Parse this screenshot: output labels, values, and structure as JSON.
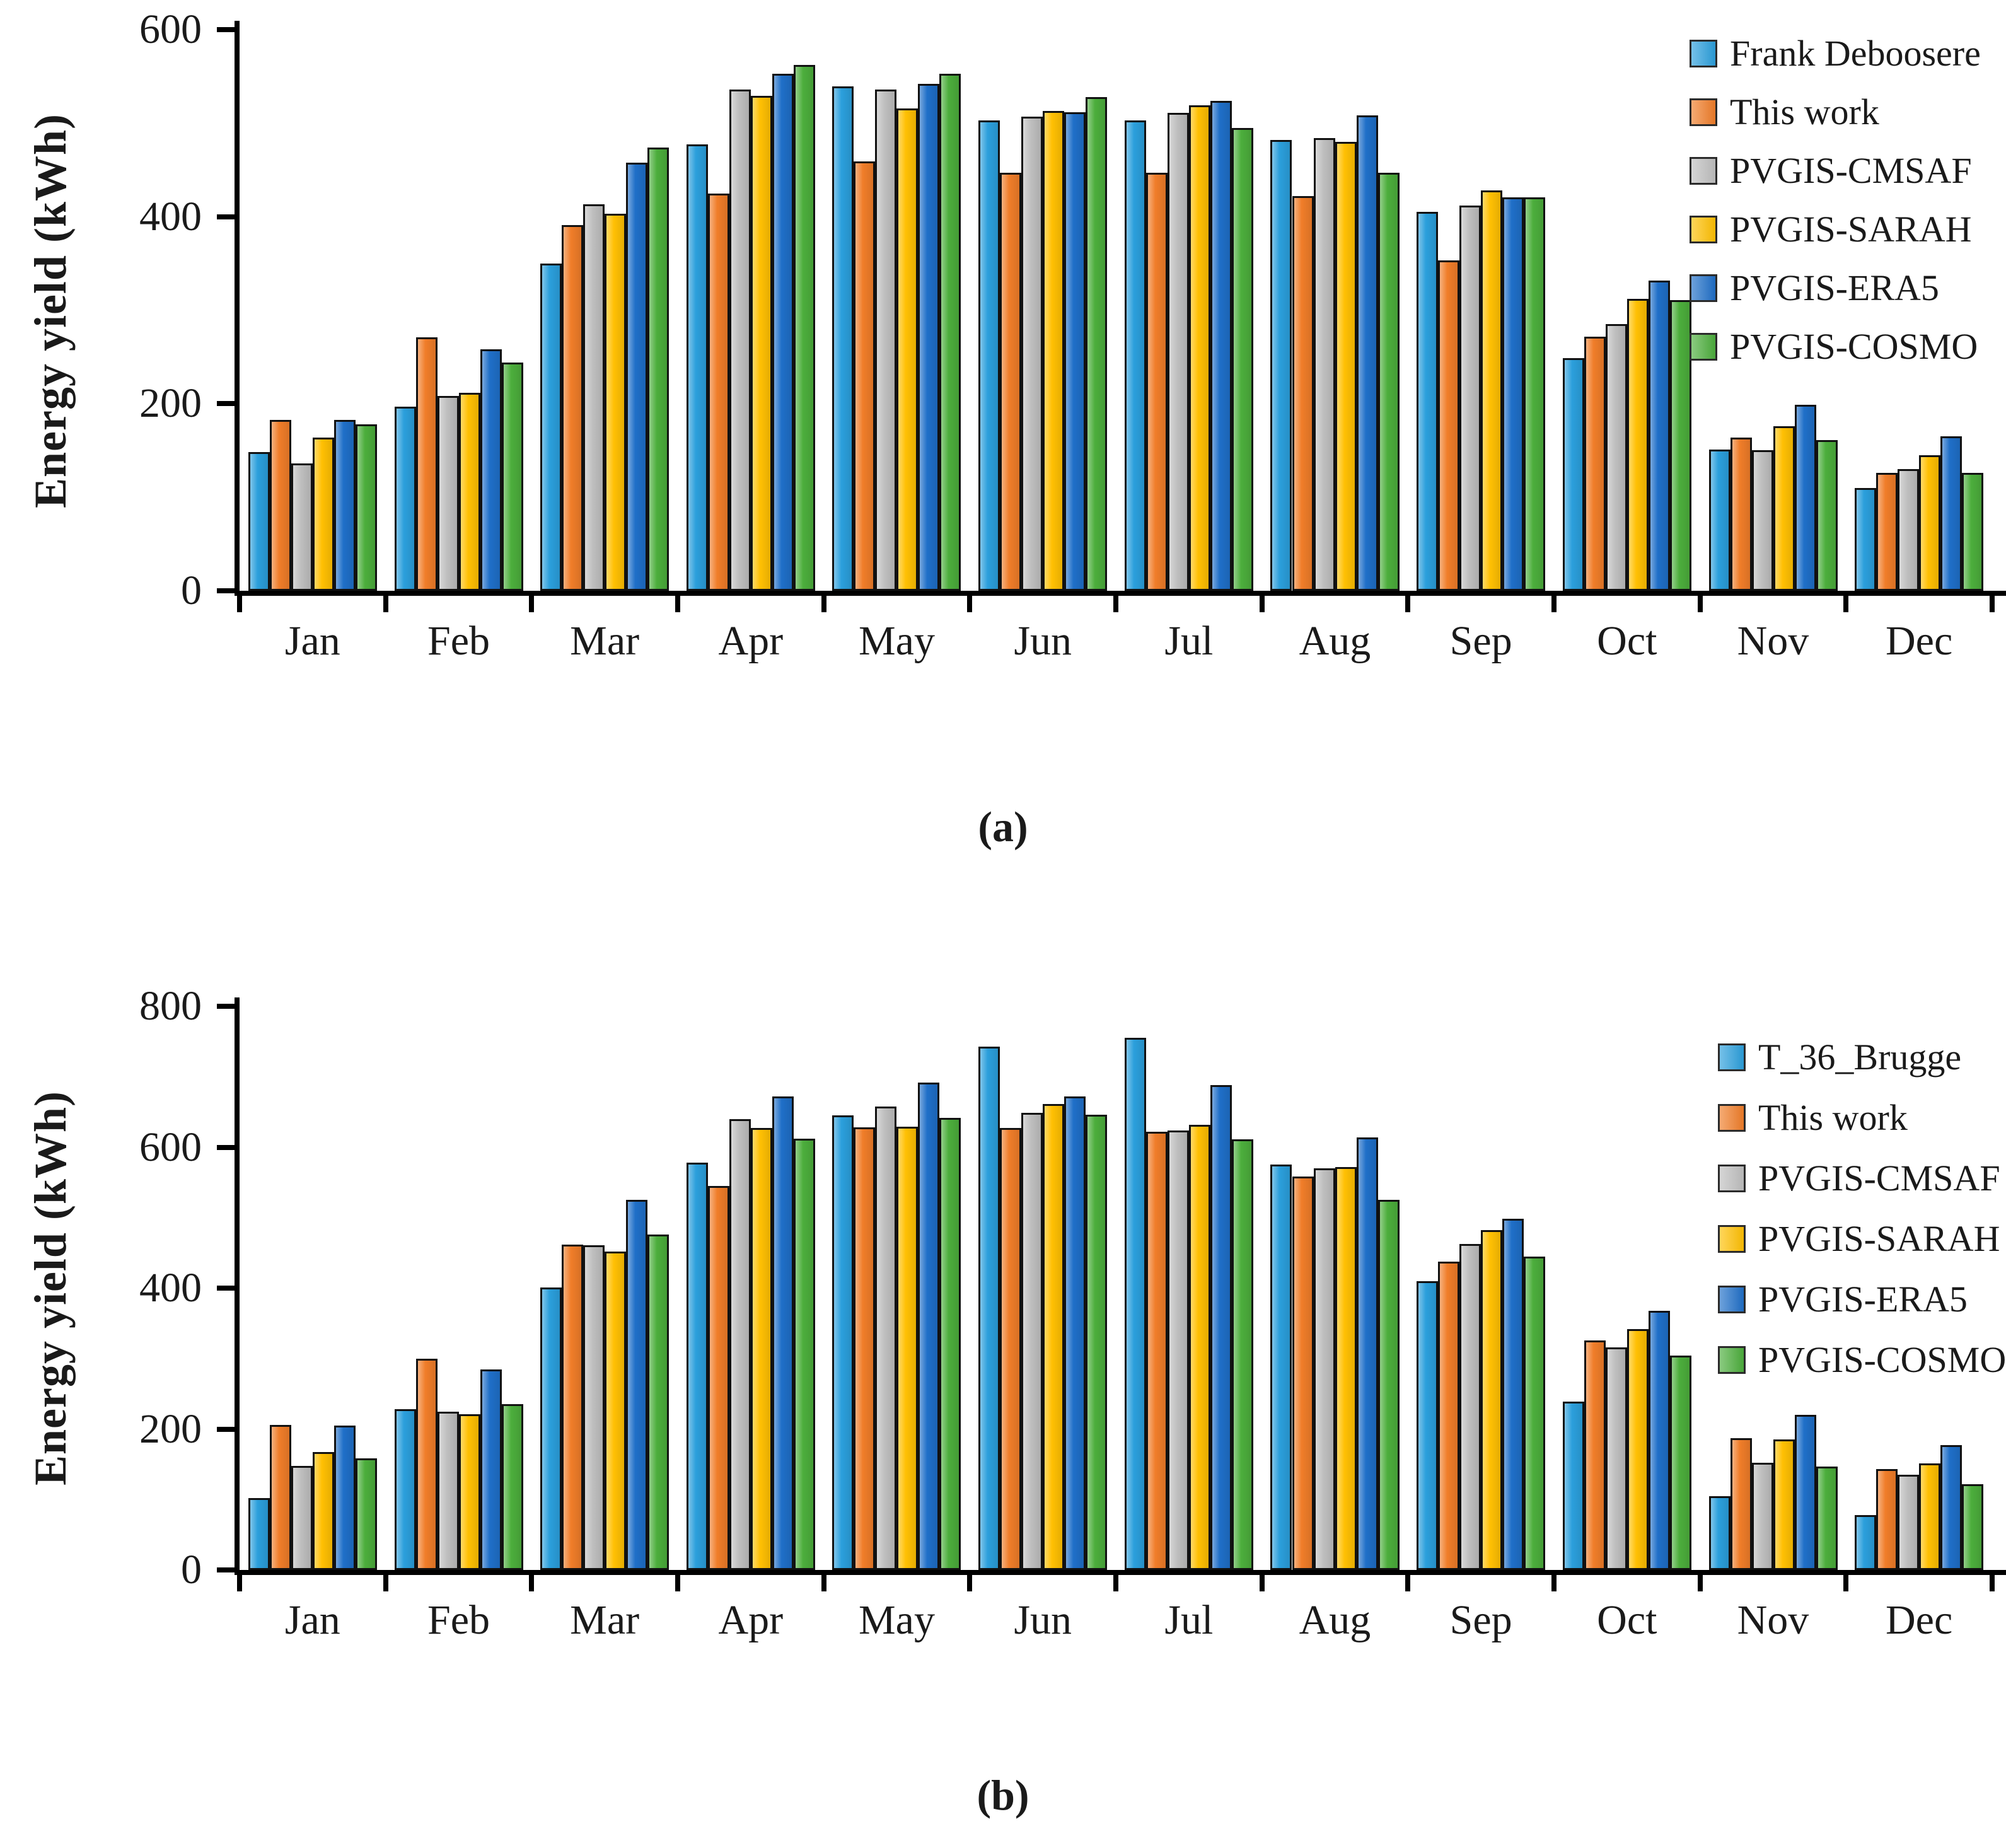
{
  "figure": {
    "ylabel": "Energy yield (kWh)",
    "captions": {
      "a": "(a)",
      "b": "(b)"
    }
  },
  "chart_data": [
    {
      "panel": "a",
      "type": "bar",
      "caption": "(a)",
      "ylabel": "Energy yield (kWh)",
      "ylim": [
        0,
        600
      ],
      "yticks": [
        0,
        200,
        400,
        600
      ],
      "grid": false,
      "legend_position": "top-right",
      "categories": [
        "Jan",
        "Feb",
        "Mar",
        "Apr",
        "May",
        "Jun",
        "Jul",
        "Aug",
        "Sep",
        "Oct",
        "Nov",
        "Dec"
      ],
      "series": [
        {
          "name": "Frank Deboosere",
          "color": "#2B9FDC",
          "values": [
            148,
            197,
            350,
            477,
            539,
            503,
            503,
            482,
            405,
            249,
            151,
            110
          ]
        },
        {
          "name": "This work",
          "color": "#F07D29",
          "values": [
            183,
            271,
            391,
            425,
            459,
            447,
            447,
            422,
            353,
            272,
            164,
            126
          ]
        },
        {
          "name": "PVGIS-CMSAF",
          "color": "#BFBFBF",
          "values": [
            136,
            208,
            413,
            536,
            536,
            507,
            511,
            484,
            412,
            285,
            150,
            130
          ]
        },
        {
          "name": "PVGIS-SARAH",
          "color": "#FFC003",
          "values": [
            164,
            212,
            403,
            529,
            516,
            513,
            519,
            480,
            428,
            312,
            176,
            145
          ]
        },
        {
          "name": "PVGIS-ERA5",
          "color": "#1F6FC8",
          "values": [
            183,
            258,
            458,
            553,
            542,
            512,
            524,
            508,
            421,
            332,
            199,
            165
          ]
        },
        {
          "name": "PVGIS-COSMO",
          "color": "#4CAE3C",
          "values": [
            178,
            244,
            474,
            562,
            553,
            528,
            495,
            447,
            421,
            311,
            161,
            126
          ]
        }
      ]
    },
    {
      "panel": "b",
      "type": "bar",
      "caption": "(b)",
      "ylabel": "Energy yield (kWh)",
      "ylim": [
        0,
        800
      ],
      "yticks": [
        0,
        200,
        400,
        600,
        800
      ],
      "grid": false,
      "legend_position": "top-right",
      "categories": [
        "Jan",
        "Feb",
        "Mar",
        "Apr",
        "May",
        "Jun",
        "Jul",
        "Aug",
        "Sep",
        "Oct",
        "Nov",
        "Dec"
      ],
      "series": [
        {
          "name": "T_36_Brugge",
          "color": "#2B9FDC",
          "values": [
            102,
            228,
            401,
            578,
            645,
            743,
            755,
            575,
            410,
            239,
            105,
            78
          ]
        },
        {
          "name": "This work",
          "color": "#F07D29",
          "values": [
            206,
            300,
            462,
            545,
            628,
            627,
            622,
            558,
            438,
            326,
            187,
            143
          ]
        },
        {
          "name": "PVGIS-CMSAF",
          "color": "#BFBFBF",
          "values": [
            148,
            225,
            461,
            640,
            658,
            649,
            624,
            570,
            463,
            316,
            152,
            135
          ]
        },
        {
          "name": "PVGIS-SARAH",
          "color": "#FFC003",
          "values": [
            167,
            221,
            452,
            627,
            629,
            661,
            632,
            572,
            482,
            342,
            185,
            151
          ]
        },
        {
          "name": "PVGIS-ERA5",
          "color": "#1F6FC8",
          "values": [
            205,
            285,
            525,
            672,
            692,
            672,
            688,
            614,
            498,
            368,
            220,
            177
          ]
        },
        {
          "name": "PVGIS-COSMO",
          "color": "#4CAE3C",
          "values": [
            158,
            235,
            476,
            612,
            642,
            646,
            611,
            525,
            445,
            304,
            147,
            122
          ]
        }
      ]
    }
  ]
}
